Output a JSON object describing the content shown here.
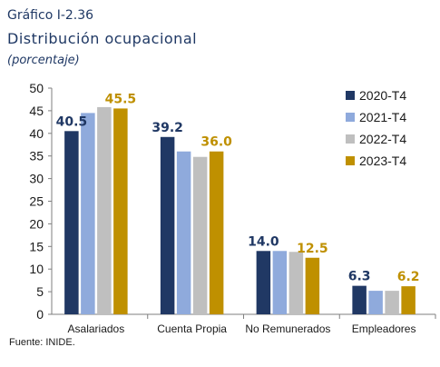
{
  "figure": {
    "label": "Gráfico I-2.36",
    "title": "Distribución ocupacional",
    "subtitle": "(porcentaje)",
    "source": "Fuente: INIDE."
  },
  "chart_data": {
    "type": "bar",
    "categories": [
      "Asalariados",
      "Cuenta Propia",
      "No Remunerados",
      "Empleadores"
    ],
    "series": [
      {
        "name": "2020-T4",
        "color": "#203864",
        "values": [
          40.5,
          39.2,
          14.0,
          6.3
        ]
      },
      {
        "name": "2021-T4",
        "color": "#8faadc",
        "values": [
          44.5,
          36.0,
          14.0,
          5.2
        ]
      },
      {
        "name": "2022-T4",
        "color": "#bfbfbf",
        "values": [
          45.8,
          34.8,
          13.8,
          5.2
        ]
      },
      {
        "name": "2023-T4",
        "color": "#bf9000",
        "values": [
          45.5,
          36.0,
          12.5,
          6.2
        ]
      }
    ],
    "data_labels": [
      {
        "category": "Asalariados",
        "series": "2020-T4",
        "text": "40.5",
        "color": "#203864"
      },
      {
        "category": "Asalariados",
        "series": "2023-T4",
        "text": "45.5",
        "color": "#bf9000"
      },
      {
        "category": "Cuenta Propia",
        "series": "2020-T4",
        "text": "39.2",
        "color": "#203864"
      },
      {
        "category": "Cuenta Propia",
        "series": "2023-T4",
        "text": "36.0",
        "color": "#bf9000"
      },
      {
        "category": "No Remunerados",
        "series": "2020-T4",
        "text": "14.0",
        "color": "#203864"
      },
      {
        "category": "No Remunerados",
        "series": "2023-T4",
        "text": "12.5",
        "color": "#bf9000"
      },
      {
        "category": "Empleadores",
        "series": "2020-T4",
        "text": "6.3",
        "color": "#203864"
      },
      {
        "category": "Empleadores",
        "series": "2023-T4",
        "text": "6.2",
        "color": "#bf9000"
      }
    ],
    "ylim": [
      0,
      50
    ],
    "yticks": [
      "0",
      "5",
      "10",
      "15",
      "20",
      "25",
      "30",
      "35",
      "40",
      "45",
      "50"
    ],
    "grid": false,
    "legend_position": "top-right"
  }
}
